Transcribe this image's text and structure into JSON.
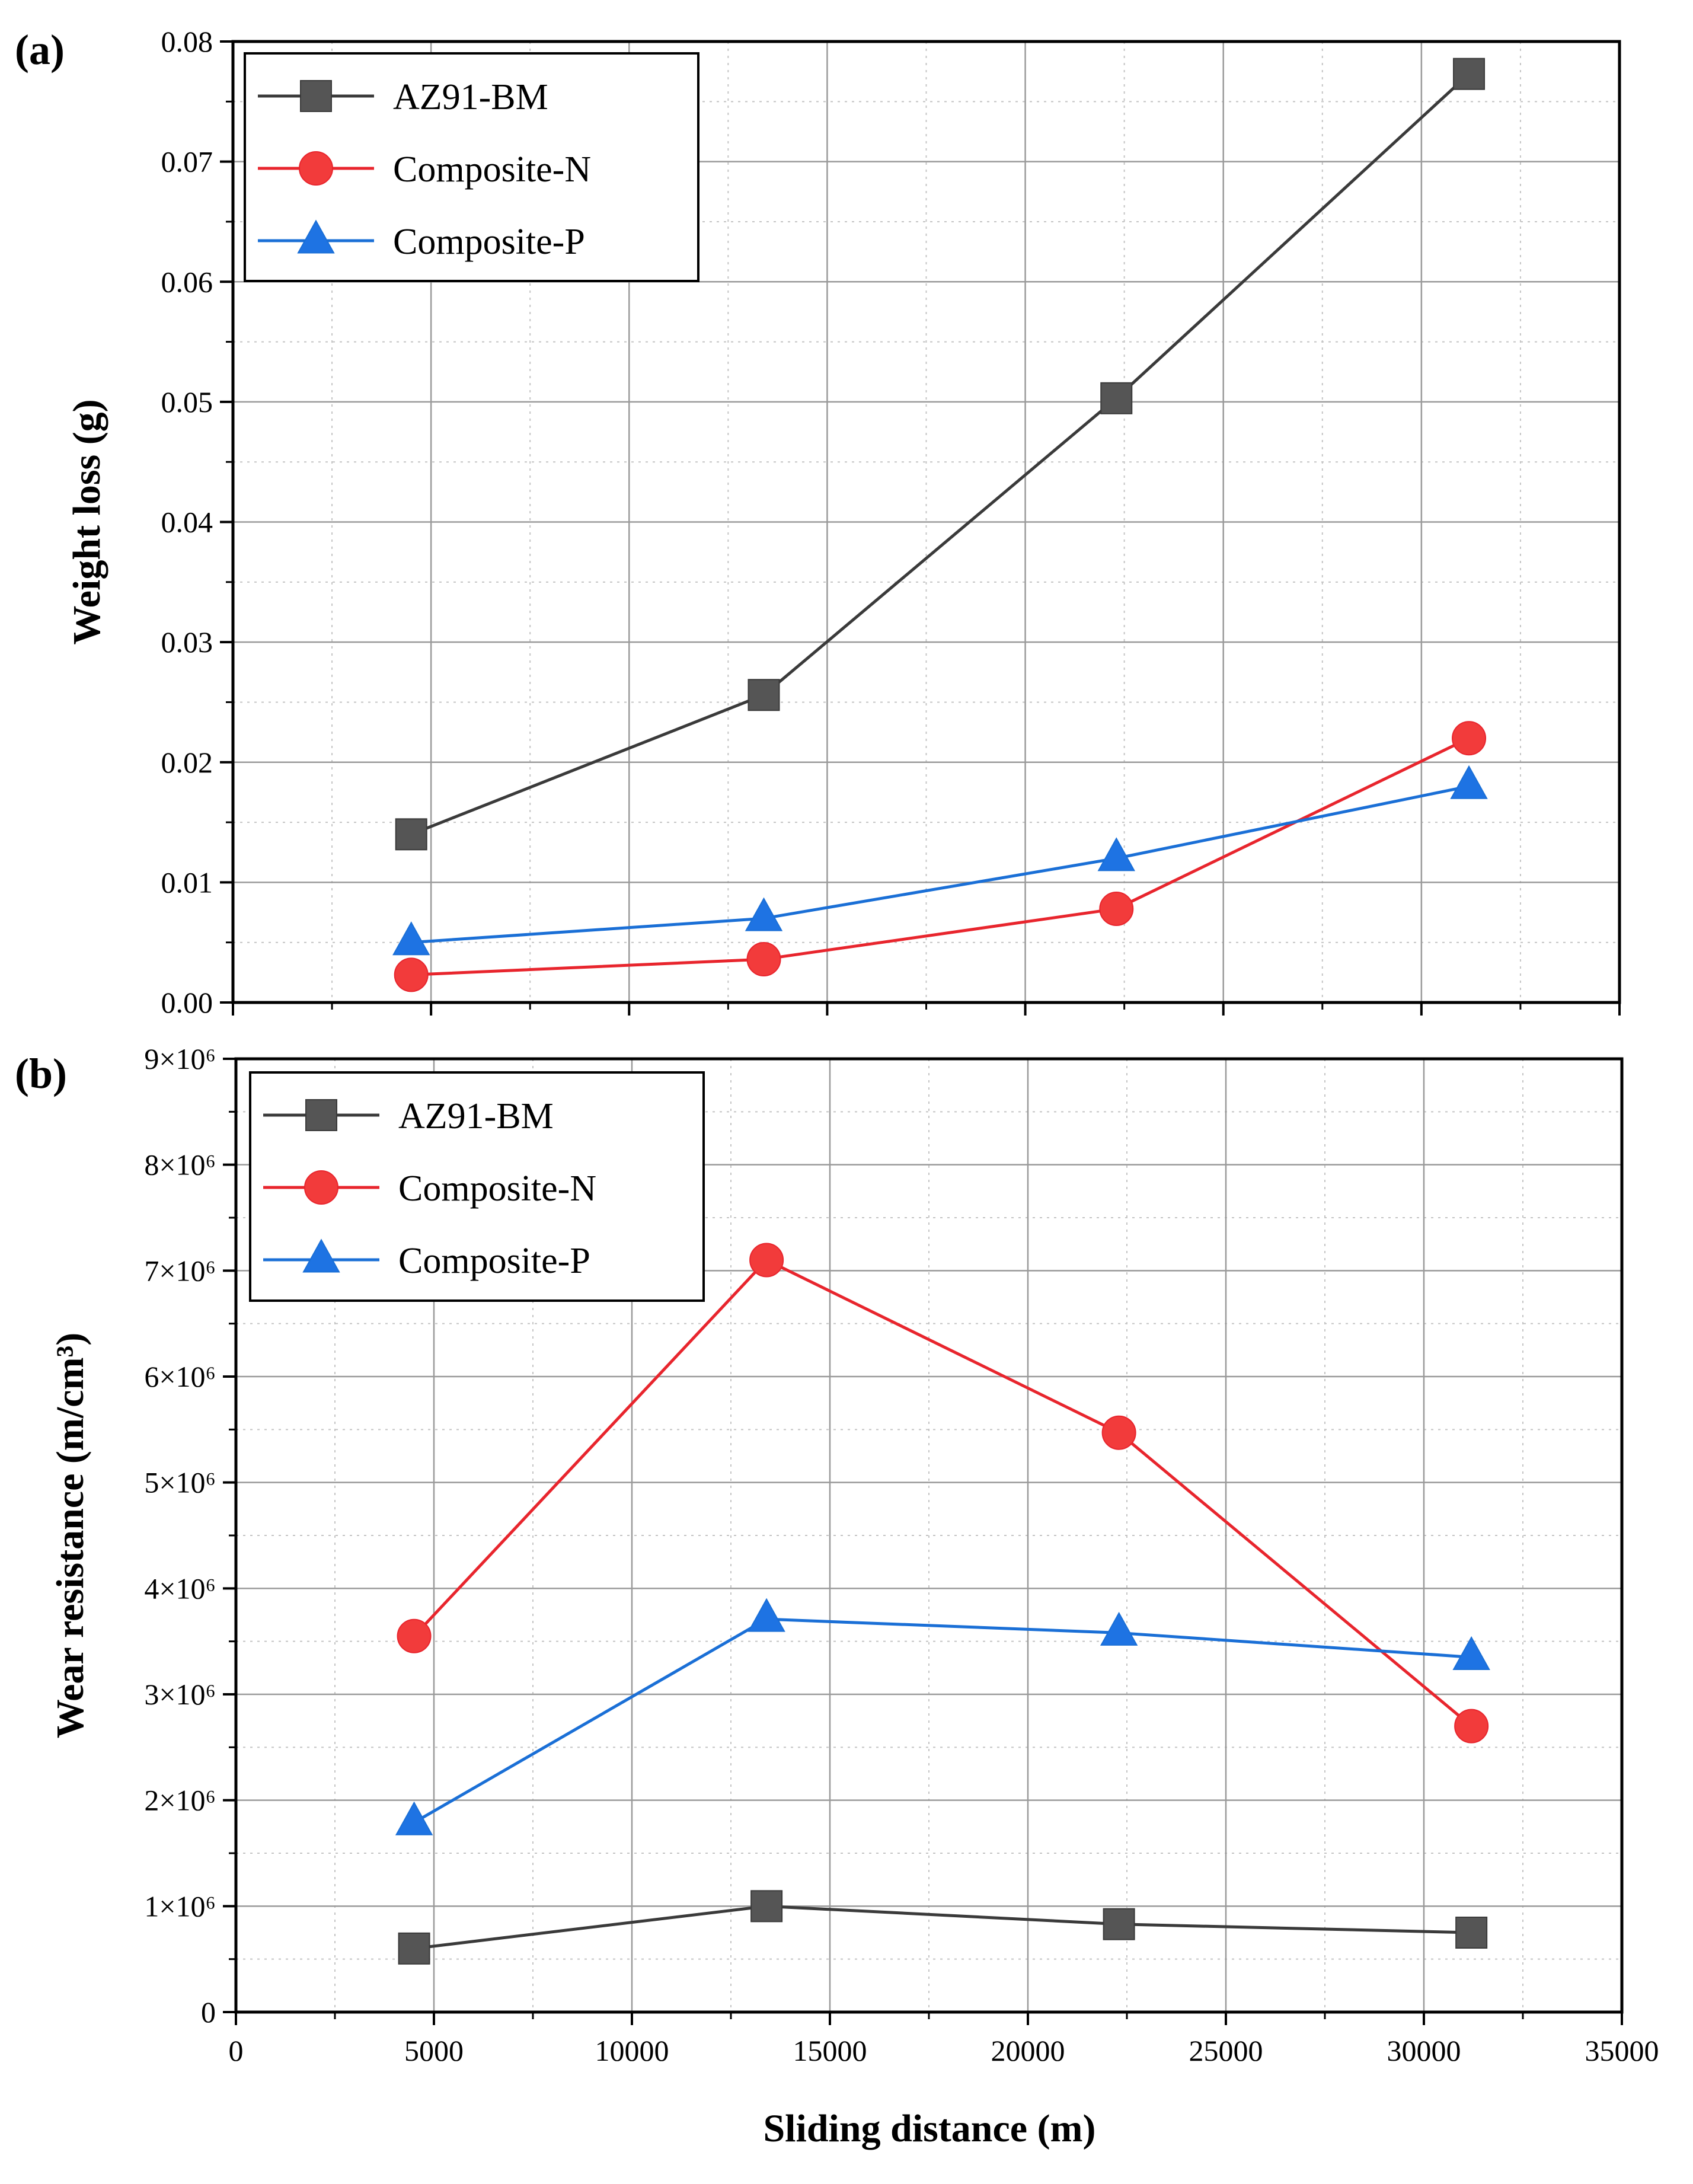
{
  "figure": {
    "panel_a_label": "(a)",
    "panel_b_label": "(b)",
    "shared_xlabel": "Sliding distance (m)"
  },
  "colors": {
    "AZ91-BM": "#3a3a3a",
    "AZ91-BM_marker": "#555555",
    "Composite-N": "#e8252d",
    "Composite-N_marker": "#f23b3b",
    "Composite-P": "#1a6fd6",
    "Composite-P_marker": "#1e73e3"
  },
  "chart_data": [
    {
      "id": "a",
      "type": "line",
      "title": "",
      "xlabel": "",
      "ylabel": "Weight loss (g)",
      "xlim": [
        0,
        35000
      ],
      "ylim": [
        0,
        0.08
      ],
      "x": [
        4500,
        13400,
        22300,
        31200
      ],
      "xticks": [
        0,
        5000,
        10000,
        15000,
        20000,
        25000,
        30000,
        35000
      ],
      "xtick_labels_visible": false,
      "yticks": [
        0,
        0.01,
        0.02,
        0.03,
        0.04,
        0.05,
        0.06,
        0.07,
        0.08
      ],
      "ytick_labels": [
        "0.00",
        "0.01",
        "0.02",
        "0.03",
        "0.04",
        "0.05",
        "0.06",
        "0.07",
        "0.08"
      ],
      "grid": true,
      "legend": "top-left",
      "series": [
        {
          "name": "AZ91-BM",
          "marker": "square",
          "values": [
            0.014,
            0.0256,
            0.0503,
            0.0773
          ]
        },
        {
          "name": "Composite-N",
          "marker": "circle",
          "values": [
            0.0023,
            0.0036,
            0.0078,
            0.022
          ]
        },
        {
          "name": "Composite-P",
          "marker": "triangle",
          "values": [
            0.005,
            0.007,
            0.012,
            0.018
          ]
        }
      ]
    },
    {
      "id": "b",
      "type": "line",
      "title": "",
      "xlabel": "Sliding distance (m)",
      "ylabel": "Wear resistance (m/cm³)",
      "xlim": [
        0,
        35000
      ],
      "ylim": [
        0,
        9000000
      ],
      "x": [
        4500,
        13400,
        22300,
        31200
      ],
      "xticks": [
        0,
        5000,
        10000,
        15000,
        20000,
        25000,
        30000,
        35000
      ],
      "xtick_labels": [
        "0",
        "5000",
        "10000",
        "15000",
        "20000",
        "25000",
        "30000",
        "35000"
      ],
      "yticks": [
        0,
        1000000,
        2000000,
        3000000,
        4000000,
        5000000,
        6000000,
        7000000,
        8000000,
        9000000
      ],
      "ytick_labels": [
        "0",
        "1×10⁶",
        "2×10⁶",
        "3×10⁶",
        "4×10⁶",
        "5×10⁶",
        "6×10⁶",
        "7×10⁶",
        "8×10⁶",
        "9×10⁶"
      ],
      "grid": true,
      "legend": "top-left",
      "series": [
        {
          "name": "AZ91-BM",
          "marker": "square",
          "values": [
            600000,
            1000000,
            830000,
            750000
          ]
        },
        {
          "name": "Composite-N",
          "marker": "circle",
          "values": [
            3550000,
            7100000,
            5470000,
            2700000
          ]
        },
        {
          "name": "Composite-P",
          "marker": "triangle",
          "values": [
            1790000,
            3710000,
            3580000,
            3350000
          ]
        }
      ]
    }
  ]
}
